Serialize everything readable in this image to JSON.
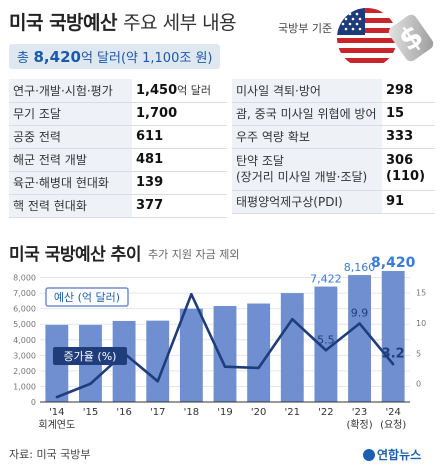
{
  "header": {
    "title": "미국 국방예산",
    "subtitle": "주요 세부 내용",
    "source_note": "국방부 기준",
    "total_label": "총",
    "total_value": "8,420",
    "total_unit": "억 달러(약 1,100조 원)"
  },
  "items_left": [
    {
      "name": "연구·개발·시험·평가",
      "value": "1,450",
      "unit": "억 달러"
    },
    {
      "name": "무기 조달",
      "value": "1,700",
      "unit": ""
    },
    {
      "name": "공중 전력",
      "value": "611",
      "unit": ""
    },
    {
      "name": "해군 전력 개발",
      "value": "481",
      "unit": ""
    },
    {
      "name": "육군·해병대 현대화",
      "value": "139",
      "unit": ""
    },
    {
      "name": "핵 전력 현대화",
      "value": "377",
      "unit": ""
    }
  ],
  "items_right": [
    {
      "name": "미사일 격퇴·방어",
      "value": "298"
    },
    {
      "name": "괌, 중국 미사일 위협에 방어",
      "value": "15"
    },
    {
      "name": "우주 역량 확보",
      "value": "333"
    },
    {
      "name": "탄약 조달",
      "name2": "(장거리 미사일 개발·조달)",
      "value": "306",
      "value2": "(110)"
    },
    {
      "name": "태평양억제구상(PDI)",
      "value": "91"
    }
  ],
  "chart_title": "미국 국방예산 추이",
  "chart_note": "추가 지원 자금 제외",
  "chart_data": {
    "type": "bar",
    "categories": [
      "'14",
      "'15",
      "'16",
      "'17",
      "'18",
      "'19",
      "'20",
      "'21",
      "'22",
      "'23",
      "'24"
    ],
    "category_notes": [
      "회계연도",
      "",
      "",
      "",
      "",
      "",
      "",
      "",
      "",
      "(확정)",
      "(요청)"
    ],
    "series": [
      {
        "name": "예산 (억 달러)",
        "type": "bar",
        "axis": "left",
        "values": [
          4960,
          4960,
          5210,
          5230,
          6000,
          6170,
          6330,
          7000,
          7422,
          8160,
          8420
        ],
        "labeled": [
          false,
          false,
          false,
          false,
          false,
          false,
          false,
          false,
          true,
          true,
          true
        ],
        "labels": [
          "",
          "",
          "",
          "",
          "",
          "",
          "",
          "",
          "7,422",
          "8,160",
          "8,420"
        ],
        "color": "#6f8fd0"
      },
      {
        "name": "증가율 (%)",
        "type": "line",
        "axis": "right",
        "values": [
          -2.2,
          0.0,
          5.0,
          0.4,
          14.7,
          2.8,
          2.6,
          10.6,
          5.5,
          9.9,
          3.2
        ],
        "labeled": [
          false,
          false,
          false,
          false,
          false,
          false,
          false,
          false,
          true,
          true,
          true
        ],
        "labels": [
          "",
          "",
          "",
          "",
          "",
          "",
          "",
          "",
          "5.5",
          "9.9",
          "3.2"
        ],
        "color": "#1f3d7a"
      }
    ],
    "y_left": {
      "ticks": [
        0,
        1000,
        2000,
        3000,
        4000,
        5000,
        6000,
        7000,
        8000
      ],
      "tick_labels": [
        "0",
        "1,000",
        "2,000",
        "3,000",
        "4,000",
        "5,000",
        "6,000",
        "7,000",
        "8,000"
      ],
      "range": [
        0,
        9000
      ]
    },
    "y_right": {
      "ticks": [
        0,
        5,
        10,
        15
      ],
      "tick_labels": [
        "0",
        "5",
        "10",
        "15"
      ],
      "range": [
        -3,
        20
      ]
    },
    "grid": true,
    "highlight_color": "#3a7bd5"
  },
  "footer": {
    "source": "자료: 미국 국방부",
    "brand": "연합뉴스"
  }
}
